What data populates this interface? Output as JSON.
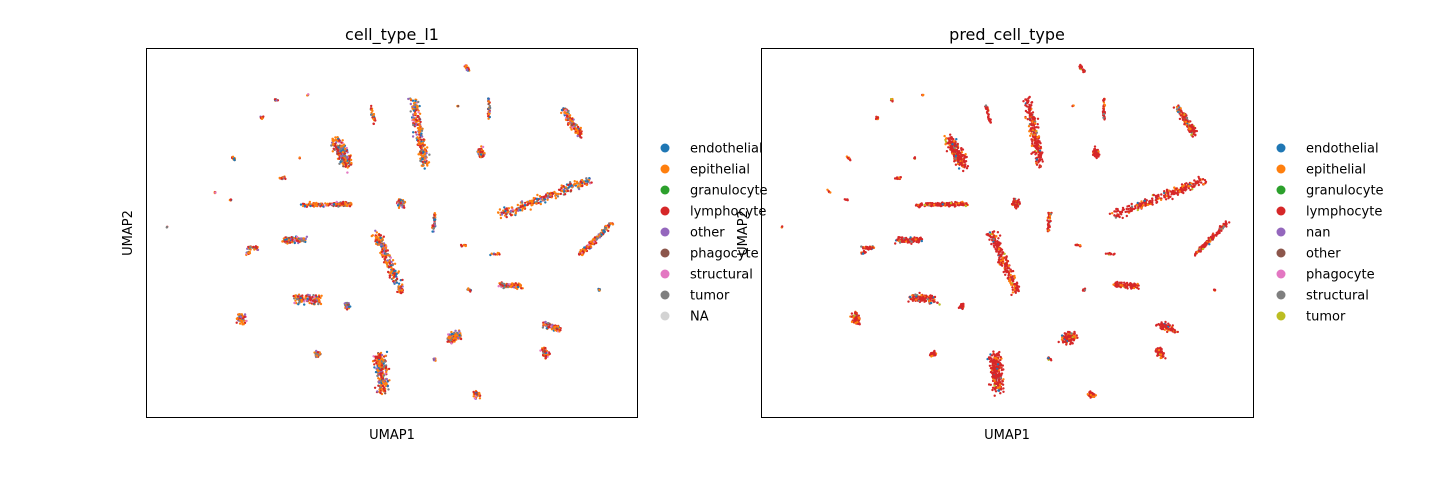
{
  "chart_data": [
    {
      "type": "scatter",
      "title": "cell_type_l1",
      "xlabel": "UMAP1",
      "ylabel": "UMAP2",
      "grid": false,
      "xticks": [],
      "yticks": [],
      "legend": {
        "placement": "right-outside",
        "entries": [
          {
            "label": "endothelial",
            "color": "#1f77b4"
          },
          {
            "label": "epithelial",
            "color": "#ff7f0e"
          },
          {
            "label": "granulocyte",
            "color": "#2ca02c"
          },
          {
            "label": "lymphocyte",
            "color": "#d62728"
          },
          {
            "label": "other",
            "color": "#9467bd"
          },
          {
            "label": "phagocyte",
            "color": "#8c564b"
          },
          {
            "label": "structural",
            "color": "#e377c2"
          },
          {
            "label": "tumor",
            "color": "#7f7f7f"
          },
          {
            "label": "NA",
            "color": "#d3d3d3"
          }
        ]
      },
      "clusters_note_colors": {
        "mix": [
          "#ff7f0e",
          "#d62728",
          "#1f77b4",
          "#7f7f7f",
          "#9467bd",
          "#e377c2",
          "#8c564b"
        ],
        "sparse": [
          "#d62728",
          "#ff7f0e",
          "#9467bd",
          "#e377c2",
          "#2ca02c"
        ]
      }
    },
    {
      "type": "scatter",
      "title": "pred_cell_type",
      "xlabel": "UMAP1",
      "ylabel": "UMAP2",
      "grid": false,
      "xticks": [],
      "yticks": [],
      "legend": {
        "placement": "right-outside",
        "entries": [
          {
            "label": "endothelial",
            "color": "#1f77b4"
          },
          {
            "label": "epithelial",
            "color": "#ff7f0e"
          },
          {
            "label": "granulocyte",
            "color": "#2ca02c"
          },
          {
            "label": "lymphocyte",
            "color": "#d62728"
          },
          {
            "label": "nan",
            "color": "#9467bd"
          },
          {
            "label": "other",
            "color": "#8c564b"
          },
          {
            "label": "phagocyte",
            "color": "#e377c2"
          },
          {
            "label": "structural",
            "color": "#7f7f7f"
          },
          {
            "label": "tumor",
            "color": "#bcbd22"
          }
        ]
      }
    }
  ]
}
